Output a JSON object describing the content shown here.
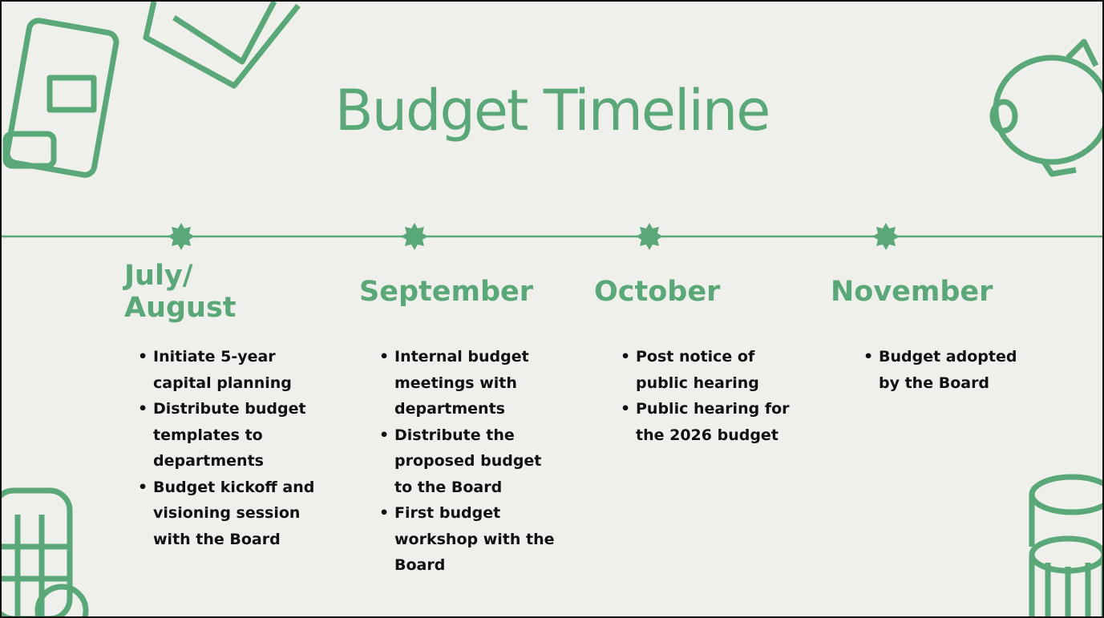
{
  "title": "Budget Timeline",
  "columns": [
    {
      "heading": "July/ August",
      "items": [
        "Initiate 5-year capital planning",
        "Distribute budget templates to departments",
        "Budget kickoff and visioning session with the Board"
      ]
    },
    {
      "heading": "September",
      "items": [
        "Internal budget meetings with departments",
        "Distribute the proposed budget to the Board",
        "First budget workshop with the Board"
      ]
    },
    {
      "heading": "October",
      "items": [
        "Post notice of public hearing",
        "Public hearing for the 2026 budget"
      ]
    },
    {
      "heading": "November",
      "items": [
        "Budget adopted by the Board"
      ]
    }
  ]
}
